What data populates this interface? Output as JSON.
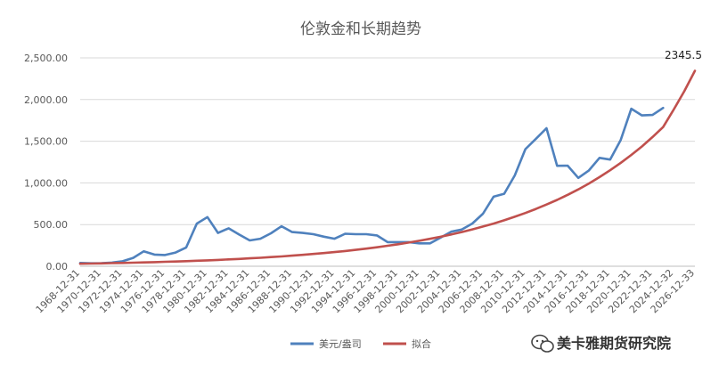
{
  "chart_data": {
    "type": "line",
    "title": "伦敦金和长期趋势",
    "xlabel": "",
    "ylabel": "",
    "ylim": [
      0,
      2500
    ],
    "yticks": [
      0,
      500,
      1000,
      1500,
      2000,
      2500
    ],
    "ytick_labels": [
      "0.00",
      "500.00",
      "1,000.00",
      "1,500.00",
      "2,000.00",
      "2,500.00"
    ],
    "x": [
      1968,
      1969,
      1970,
      1971,
      1972,
      1973,
      1974,
      1975,
      1976,
      1977,
      1978,
      1979,
      1980,
      1981,
      1982,
      1983,
      1984,
      1985,
      1986,
      1987,
      1988,
      1989,
      1990,
      1991,
      1992,
      1993,
      1994,
      1995,
      1996,
      1997,
      1998,
      1999,
      2000,
      2001,
      2002,
      2003,
      2004,
      2005,
      2006,
      2007,
      2008,
      2009,
      2010,
      2011,
      2012,
      2013,
      2014,
      2015,
      2016,
      2017,
      2018,
      2019,
      2020,
      2021,
      2022,
      2023,
      2024,
      2025,
      2026
    ],
    "xtick_labels": [
      "1968-12-31",
      "1970-12-31",
      "1972-12-31",
      "1974-12-31",
      "1976-12-31",
      "1978-12-31",
      "1980-12-31",
      "1982-12-31",
      "1984-12-31",
      "1986-12-31",
      "1988-12-31",
      "1990-12-31",
      "1992-12-31",
      "1994-12-31",
      "1996-12-31",
      "1998-12-31",
      "2000-12-31",
      "2002-12-31",
      "2004-12-31",
      "2006-12-31",
      "2008-12-31",
      "2010-12-31",
      "2012-12-31",
      "2014-12-31",
      "2016-12-31",
      "2018-12-31",
      "2020-12-31",
      "2022-12-31",
      "2024-12-32",
      "2026-12-33"
    ],
    "grid": true,
    "legend_position": "bottom",
    "series": [
      {
        "name": "美元/盎司",
        "color": "#4f81bd",
        "values": [
          40,
          35,
          37,
          44,
          60,
          100,
          180,
          140,
          135,
          165,
          225,
          512,
          590,
          400,
          455,
          380,
          310,
          330,
          395,
          480,
          410,
          400,
          385,
          355,
          330,
          390,
          385,
          385,
          370,
          290,
          290,
          290,
          275,
          275,
          343,
          415,
          440,
          513,
          630,
          834,
          870,
          1090,
          1405,
          1530,
          1656,
          1205,
          1206,
          1060,
          1150,
          1300,
          1280,
          1515,
          1890,
          1810,
          1815,
          1900,
          null,
          null,
          null
        ]
      },
      {
        "name": "拟合",
        "color": "#c0504d",
        "values": [
          30,
          32,
          34,
          37,
          40,
          43,
          46,
          49,
          53,
          57,
          61,
          66,
          71,
          76,
          82,
          88,
          95,
          102,
          110,
          118,
          127,
          137,
          147,
          158,
          170,
          183,
          197,
          212,
          228,
          246,
          264,
          284,
          306,
          329,
          354,
          381,
          410,
          442,
          476,
          512,
          551,
          594,
          639,
          688,
          740,
          796,
          857,
          922,
          993,
          1069,
          1152,
          1240,
          1335,
          1437,
          1550,
          1670,
          1880,
          2100,
          2345.5
        ]
      }
    ],
    "annotation": {
      "text": "2345.5",
      "x": 2026,
      "y": 2345.5
    }
  },
  "watermark": {
    "text": "美卡雅期货研究院",
    "icon": "wechat-icon"
  }
}
